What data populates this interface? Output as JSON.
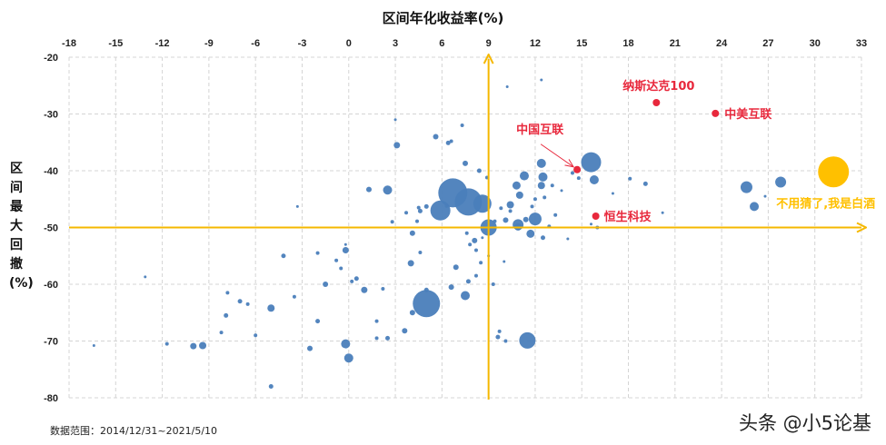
{
  "chart_data": {
    "type": "scatter",
    "subtype": "bubble",
    "title": "区间年化收益率(%)",
    "xlabel": "区间年化收益率(%)",
    "ylabel": "区间最大回撤(%)",
    "xlim": [
      -18,
      33
    ],
    "ylim": [
      -80,
      -20
    ],
    "x_ticks": [
      -18,
      -15,
      -12,
      -9,
      -6,
      -3,
      0,
      3,
      6,
      9,
      12,
      15,
      18,
      21,
      24,
      27,
      30,
      33
    ],
    "y_ticks": [
      -20,
      -30,
      -40,
      -50,
      -60,
      -70,
      -80
    ],
    "x_axis_position": "top",
    "grid": true,
    "reference_lines": {
      "x": 9,
      "y": -50,
      "color": "#F5B800"
    },
    "footnote": "数据范围：2014/12/31~2021/5/10",
    "watermark": "头条 @小5论基",
    "colors": {
      "default": "#4A7EBB",
      "highlight": "#E8283C",
      "baijiu": "#FFC000",
      "axis_arrow": "#F5B800"
    },
    "highlighted": [
      {
        "label": "纳斯达克100",
        "x": 19.8,
        "y": -28.0,
        "r": 4,
        "color": "#E8283C"
      },
      {
        "label": "中美互联",
        "x": 23.6,
        "y": -29.9,
        "r": 4,
        "color": "#E8283C"
      },
      {
        "label": "中国互联",
        "x": 14.7,
        "y": -39.8,
        "r": 4,
        "color": "#E8283C"
      },
      {
        "label": "恒生科技",
        "x": 15.9,
        "y": -48.0,
        "r": 4,
        "color": "#E8283C"
      },
      {
        "label": "不用猜了,我是白酒",
        "x": 31.2,
        "y": -40.2,
        "r": 17,
        "color": "#FFC000"
      }
    ],
    "series": [
      {
        "name": "funds",
        "points": [
          [
            6.7,
            -43.9,
            16
          ],
          [
            7.7,
            -45.5,
            15
          ],
          [
            8.6,
            -45.8,
            10
          ],
          [
            5.9,
            -47.0,
            11
          ],
          [
            15.6,
            -38.5,
            11
          ],
          [
            5.0,
            -63.4,
            15
          ],
          [
            11.5,
            -69.9,
            9
          ],
          [
            12.0,
            -48.5,
            7
          ],
          [
            9.0,
            -50.0,
            9
          ],
          [
            27.8,
            -42.0,
            6
          ],
          [
            25.6,
            -42.9,
            6.5
          ],
          [
            26.1,
            -46.3,
            5
          ],
          [
            15.8,
            -41.6,
            5
          ],
          [
            12.4,
            -38.7,
            5
          ],
          [
            11.3,
            -40.9,
            5
          ],
          [
            10.8,
            -42.6,
            4.5
          ],
          [
            11.0,
            -44.3,
            4
          ],
          [
            12.5,
            -41.1,
            5
          ],
          [
            12.4,
            -42.6,
            4
          ],
          [
            11.4,
            -48.6,
            3
          ],
          [
            10.4,
            -46.0,
            4
          ],
          [
            10.9,
            -49.5,
            6
          ],
          [
            11.7,
            -51.1,
            4.5
          ],
          [
            10.9,
            -49.9,
            4
          ],
          [
            7.6,
            -51.0,
            2
          ],
          [
            11.8,
            -46.3,
            2
          ],
          [
            12.6,
            -44.7,
            2
          ],
          [
            12.0,
            -45.0,
            2
          ],
          [
            13.1,
            -42.6,
            2
          ],
          [
            9.8,
            -46.6,
            2
          ],
          [
            10.4,
            -47.1,
            2
          ],
          [
            10.1,
            -48.7,
            3
          ],
          [
            9.4,
            -48.9,
            2
          ],
          [
            2.5,
            -43.4,
            5
          ],
          [
            1.3,
            -43.3,
            3
          ],
          [
            3.1,
            -35.5,
            3.5
          ],
          [
            5.6,
            -34.0,
            3
          ],
          [
            6.4,
            -35.1,
            2.5
          ],
          [
            6.6,
            -34.8,
            2
          ],
          [
            7.5,
            -38.7,
            3
          ],
          [
            8.4,
            -40.0,
            2.5
          ],
          [
            8.9,
            -41.2,
            2
          ],
          [
            5.0,
            -46.3,
            2.5
          ],
          [
            4.5,
            -46.5,
            2
          ],
          [
            4.4,
            -48.9,
            2
          ],
          [
            3.7,
            -47.4,
            2
          ],
          [
            2.8,
            -49.0,
            2
          ],
          [
            4.6,
            -47.1,
            2.5
          ],
          [
            6.3,
            -46.2,
            2
          ],
          [
            4.1,
            -51.0,
            3
          ],
          [
            4.6,
            -54.4,
            2
          ],
          [
            4.0,
            -56.3,
            3.5
          ],
          [
            5.0,
            -61.0,
            2.5
          ],
          [
            4.1,
            -65.0,
            3
          ],
          [
            3.6,
            -68.2,
            3
          ],
          [
            2.2,
            -60.8,
            2
          ],
          [
            0.5,
            -59.0,
            2.5
          ],
          [
            1.0,
            -61.0,
            3.5
          ],
          [
            -0.2,
            -54.0,
            3.5
          ],
          [
            0.2,
            -59.5,
            2
          ],
          [
            -0.5,
            -57.2,
            2
          ],
          [
            -1.5,
            -60.0,
            3
          ],
          [
            1.8,
            -66.5,
            2
          ],
          [
            2.5,
            -69.5,
            2.5
          ],
          [
            1.8,
            -69.5,
            2
          ],
          [
            -0.2,
            -70.5,
            5
          ],
          [
            0.0,
            -73.0,
            5
          ],
          [
            -2.5,
            -71.3,
            3
          ],
          [
            -2.0,
            -66.5,
            2.5
          ],
          [
            -3.5,
            -62.2,
            2
          ],
          [
            -5.0,
            -64.2,
            4
          ],
          [
            -5.0,
            -78.0,
            2.5
          ],
          [
            -6.0,
            -69.0,
            2
          ],
          [
            -6.5,
            -63.5,
            2
          ],
          [
            -7.0,
            -63.0,
            2.5
          ],
          [
            -7.8,
            -61.5,
            2
          ],
          [
            -8.2,
            -68.5,
            2
          ],
          [
            -7.9,
            -65.5,
            2.5
          ],
          [
            -9.4,
            -70.8,
            4
          ],
          [
            -10.0,
            -70.9,
            3.5
          ],
          [
            -11.7,
            -70.5,
            2
          ],
          [
            -13.1,
            -58.7,
            1.5
          ],
          [
            -16.4,
            -70.8,
            1.5
          ],
          [
            -4.2,
            -55.0,
            2.5
          ],
          [
            -2.0,
            -54.5,
            2
          ],
          [
            -0.8,
            -55.8,
            2
          ],
          [
            6.9,
            -57.0,
            3
          ],
          [
            7.7,
            -59.5,
            2.5
          ],
          [
            7.5,
            -62.0,
            5
          ],
          [
            6.6,
            -60.5,
            3
          ],
          [
            8.2,
            -58.5,
            2
          ],
          [
            8.5,
            -56.2,
            2
          ],
          [
            9.3,
            -60.0,
            2
          ],
          [
            9.7,
            -68.3,
            2
          ],
          [
            9.6,
            -69.3,
            2.5
          ],
          [
            10.1,
            -70.0,
            2
          ],
          [
            7.8,
            -53.0,
            2
          ],
          [
            8.1,
            -52.3,
            3
          ],
          [
            8.2,
            -54.0,
            2
          ],
          [
            8.6,
            -51.8,
            1.5
          ],
          [
            9.0,
            -55.0,
            1.5
          ],
          [
            10.0,
            -56.0,
            1.5
          ],
          [
            12.5,
            -51.8,
            2.5
          ],
          [
            14.1,
            -52.0,
            1.5
          ],
          [
            13.3,
            -47.8,
            2
          ],
          [
            12.9,
            -49.8,
            2
          ],
          [
            14.4,
            -40.4,
            2
          ],
          [
            14.8,
            -41.3,
            2
          ],
          [
            16.0,
            -50.0,
            2
          ],
          [
            13.7,
            -43.5,
            1.5
          ],
          [
            17.0,
            -44.0,
            1.5
          ],
          [
            18.1,
            -41.4,
            2
          ],
          [
            19.1,
            -42.3,
            2.5
          ],
          [
            20.2,
            -47.4,
            1.5
          ],
          [
            26.8,
            -44.5,
            1.5
          ],
          [
            15.6,
            -49.4,
            1.5
          ],
          [
            3.0,
            -31.0,
            1.5
          ],
          [
            -0.2,
            -53.0,
            1.5
          ],
          [
            -3.3,
            -46.3,
            1.5
          ],
          [
            12.4,
            -24.0,
            1.5
          ],
          [
            10.2,
            -25.2,
            1.5
          ],
          [
            7.3,
            -32.0,
            2
          ]
        ]
      }
    ]
  }
}
